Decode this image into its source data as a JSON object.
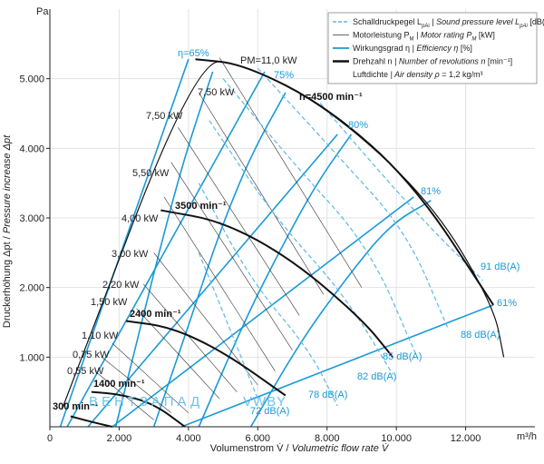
{
  "colors": {
    "cyan": "#1a9ad6",
    "cyan_light": "#5bb8e6",
    "black": "#111111",
    "grid": "#e3e3e3",
    "legend_border": "#888888"
  },
  "axes": {
    "y_unit": "Pa",
    "x_unit": "m³/h",
    "x_label_de": "Volumenstrom V̇ / ",
    "x_label_en": "Volumetric flow rate V̇",
    "y_label_de": "Druckerhöhung Δpt / ",
    "y_label_en": "Pressure increase Δpt",
    "x_ticks": [
      {
        "v": 0,
        "t": "0"
      },
      {
        "v": 2000,
        "t": "2.000"
      },
      {
        "v": 4000,
        "t": "4.000"
      },
      {
        "v": 6000,
        "t": "6.000"
      },
      {
        "v": 8000,
        "t": "8.000"
      },
      {
        "v": 10000,
        "t": "10.000"
      },
      {
        "v": 12000,
        "t": "12.000"
      }
    ],
    "y_ticks": [
      {
        "v": 1000,
        "t": "1.000"
      },
      {
        "v": 2000,
        "t": "2.000"
      },
      {
        "v": 3000,
        "t": "3.000"
      },
      {
        "v": 4000,
        "t": "4.000"
      },
      {
        "v": 5000,
        "t": "5.000"
      }
    ],
    "xlim": [
      0,
      14000
    ],
    "ylim": [
      0,
      6000
    ]
  },
  "legend": {
    "items": [
      {
        "style": "dashed-cyan",
        "de": "Schalldruckpegel L",
        "sub_de": "pAi",
        "en": " | Sound pressure level L",
        "sub_en": "pAi",
        "unit": " [dB(A)]"
      },
      {
        "style": "thin-black",
        "de": "Motorleistung P",
        "sub_de": "M",
        "en": " | Motor rating P",
        "sub_en": "M",
        "unit": " [kW]"
      },
      {
        "style": "cyan",
        "de": "Wirkungsgrad η",
        "sub_de": "",
        "en": " | Efficiency η",
        "sub_en": "",
        "unit": " [%]"
      },
      {
        "style": "thick-black",
        "de": "Drehzahl n",
        "sub_de": "",
        "en": " | Number of revolutions n",
        "sub_en": "",
        "unit": " [min⁻¹]"
      },
      {
        "style": "none",
        "de": "Luftdichte",
        "sub_de": "",
        "en": " | Air density ρ",
        "sub_en": "",
        "unit": " = 1,2 kg/m³"
      }
    ]
  },
  "watermark": {
    "left": "ВЕНТЗАПАД",
    "right": "VWBY"
  },
  "chart_data": {
    "type": "line",
    "title": "",
    "xlabel": "Volumenstrom V̇ / Volumetric flow rate V̇",
    "ylabel": "Druckerhöhung Δpt / Pressure increase Δpt",
    "x_unit": "m³/h",
    "y_unit": "Pa",
    "envelope": [
      [
        350,
        250
      ],
      [
        4200,
        5280
      ],
      [
        5600,
        5210
      ],
      [
        8000,
        4600
      ],
      [
        11000,
        3250
      ],
      [
        12800,
        1750
      ],
      [
        13100,
        1000
      ]
    ],
    "speed_curves": [
      {
        "label": "n=4500  min⁻¹",
        "points": [
          [
            4200,
            5280
          ],
          [
            5600,
            5210
          ],
          [
            8000,
            4600
          ],
          [
            10500,
            3500
          ],
          [
            12800,
            1750
          ]
        ]
      },
      {
        "label": "3500 min⁻¹",
        "points": [
          [
            3200,
            3110
          ],
          [
            5000,
            2950
          ],
          [
            7000,
            2400
          ],
          [
            9000,
            1550
          ],
          [
            9900,
            1000
          ]
        ]
      },
      {
        "label": "2400 min⁻¹",
        "points": [
          [
            2200,
            1520
          ],
          [
            3500,
            1430
          ],
          [
            5000,
            1080
          ],
          [
            6800,
            450
          ]
        ]
      },
      {
        "label": "1400 min⁻¹",
        "points": [
          [
            1200,
            500
          ],
          [
            2000,
            470
          ],
          [
            3000,
            330
          ],
          [
            3900,
            0
          ]
        ]
      },
      {
        "label": "300 min⁻¹",
        "points": [
          [
            600,
            150
          ],
          [
            1200,
            70
          ],
          [
            1800,
            0
          ]
        ]
      }
    ],
    "efficiency_lines": [
      {
        "label": "η=65%",
        "points": [
          [
            300,
            0
          ],
          [
            4000,
            5280
          ]
        ]
      },
      {
        "label": "75%",
        "points": [
          [
            500,
            0
          ],
          [
            6200,
            5100
          ]
        ]
      },
      {
        "label": "80%",
        "points": [
          [
            1100,
            0
          ],
          [
            8300,
            4200
          ]
        ]
      },
      {
        "label": "81%",
        "points": [
          [
            1800,
            0
          ],
          [
            10500,
            3300
          ]
        ]
      },
      {
        "label": "61%",
        "points": [
          [
            3800,
            0
          ],
          [
            12800,
            1750
          ]
        ]
      }
    ],
    "iso_efficiency_curves": [
      [
        [
          1900,
          0
        ],
        [
          2600,
          1400
        ],
        [
          3200,
          2600
        ],
        [
          3900,
          3900
        ],
        [
          4700,
          5100
        ]
      ],
      [
        [
          3000,
          0
        ],
        [
          4100,
          1600
        ],
        [
          4900,
          2800
        ],
        [
          5800,
          3900
        ],
        [
          6800,
          4800
        ]
      ],
      [
        [
          4300,
          0
        ],
        [
          5600,
          1500
        ],
        [
          6600,
          2500
        ],
        [
          7700,
          3500
        ],
        [
          8700,
          4200
        ]
      ],
      [
        [
          5800,
          0
        ],
        [
          7200,
          1200
        ],
        [
          8500,
          2100
        ],
        [
          9800,
          2900
        ],
        [
          11000,
          3250
        ]
      ]
    ],
    "sound_levels": [
      {
        "label": "72 dB(A)",
        "points": [
          [
            4300,
            2500
          ],
          [
            5200,
            1400
          ],
          [
            6000,
            400
          ]
        ]
      },
      {
        "label": "78 dB(A)",
        "points": [
          [
            4300,
            3500
          ],
          [
            5800,
            2100
          ],
          [
            7500,
            1100
          ],
          [
            8300,
            300
          ]
        ]
      },
      {
        "label": "82 dB(A)",
        "points": [
          [
            4600,
            4400
          ],
          [
            6500,
            3000
          ],
          [
            8500,
            1900
          ],
          [
            9900,
            750
          ]
        ]
      },
      {
        "label": "85 dB(A)",
        "points": [
          [
            5000,
            5000
          ],
          [
            7000,
            3800
          ],
          [
            9200,
            2600
          ],
          [
            10600,
            1000
          ]
        ]
      },
      {
        "label": "88 dB(A)",
        "points": [
          [
            6000,
            5150
          ],
          [
            8300,
            3900
          ],
          [
            10300,
            2800
          ],
          [
            11500,
            1400
          ]
        ]
      },
      {
        "label": "91 dB(A)",
        "points": [
          [
            7800,
            4650
          ],
          [
            10500,
            3100
          ],
          [
            12500,
            2100
          ]
        ]
      }
    ],
    "motor_ratings": [
      {
        "label": "PM=11,0 kW"
      },
      {
        "label": "7,50 kW"
      },
      {
        "label": "7,50 kW"
      },
      {
        "label": "5,50 kW"
      },
      {
        "label": "4,00 kW"
      },
      {
        "label": "3,00 kW"
      },
      {
        "label": "2,20 kW"
      },
      {
        "label": "1,50 kW"
      },
      {
        "label": "1,10 kW"
      },
      {
        "label": "0,75 kW"
      },
      {
        "label": "0,55 kW"
      }
    ],
    "motor_lines": [
      [
        [
          4900,
          5300
        ],
        [
          9000,
          2000
        ]
      ],
      [
        [
          4300,
          4800
        ],
        [
          7900,
          1900
        ]
      ],
      [
        [
          3700,
          4300
        ],
        [
          7200,
          1600
        ]
      ],
      [
        [
          3500,
          3800
        ],
        [
          7000,
          1100
        ]
      ],
      [
        [
          3300,
          3300
        ],
        [
          6500,
          800
        ]
      ],
      [
        [
          3000,
          2500
        ],
        [
          6000,
          600
        ]
      ],
      [
        [
          2700,
          2050
        ],
        [
          5400,
          500
        ]
      ],
      [
        [
          2500,
          1700
        ],
        [
          4900,
          400
        ]
      ],
      [
        [
          1800,
          1200
        ],
        [
          4000,
          200
        ]
      ],
      [
        [
          1500,
          1000
        ],
        [
          3500,
          200
        ]
      ],
      [
        [
          1300,
          800
        ],
        [
          3000,
          100
        ]
      ]
    ]
  }
}
